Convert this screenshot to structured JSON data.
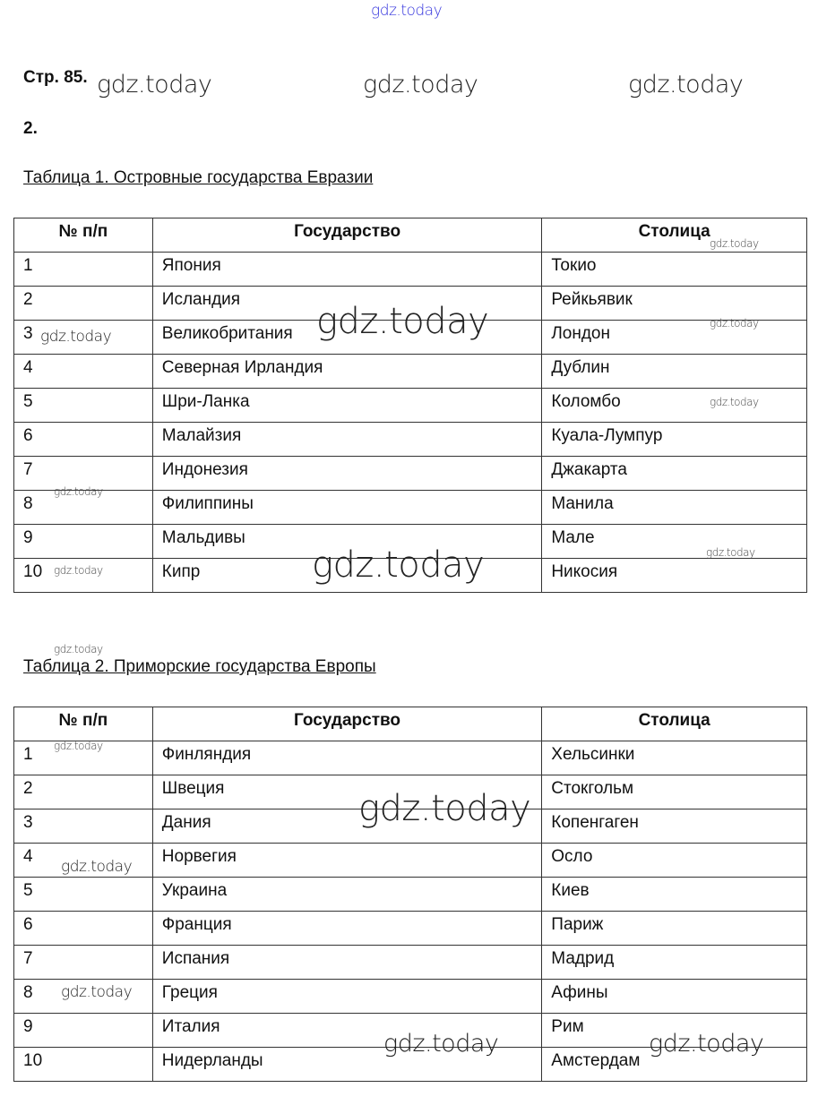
{
  "watermark": "gdz.today",
  "page_label": "Стр. 85.",
  "task_number": "2.",
  "table1": {
    "caption": "Таблица 1. Островные государства Евразии",
    "headers": [
      "№ п/п",
      "Государство",
      "Столица"
    ],
    "rows": [
      [
        "1",
        "Япония",
        "Токио"
      ],
      [
        "2",
        "Исландия",
        "Рейкьявик"
      ],
      [
        "3",
        "Великобритания",
        "Лондон"
      ],
      [
        "4",
        "Северная Ирландия",
        "Дублин"
      ],
      [
        "5",
        "Шри-Ланка",
        "Коломбо"
      ],
      [
        "6",
        "Малайзия",
        "Куала-Лумпур"
      ],
      [
        "7",
        "Индонезия",
        "Джакарта"
      ],
      [
        "8",
        "Филиппины",
        "Манила"
      ],
      [
        "9",
        "Мальдивы",
        "Мале"
      ],
      [
        "10",
        "Кипр",
        "Никосия"
      ]
    ]
  },
  "table2": {
    "caption": "Таблица 2. Приморские государства Европы",
    "headers": [
      "№ п/п",
      "Государство",
      "Столица"
    ],
    "rows": [
      [
        "1",
        "Финляндия",
        "Хельсинки"
      ],
      [
        "2",
        "Швеция",
        "Стокгольм"
      ],
      [
        "3",
        "Дания",
        "Копенгаген"
      ],
      [
        "4",
        "Норвегия",
        "Осло"
      ],
      [
        "5",
        "Украина",
        "Киев"
      ],
      [
        "6",
        "Франция",
        "Париж"
      ],
      [
        "7",
        "Испания",
        "Мадрид"
      ],
      [
        "8",
        "Греция",
        "Афины"
      ],
      [
        "9",
        "Италия",
        "Рим"
      ],
      [
        "10",
        "Нидерланды",
        "Амстердам"
      ]
    ]
  }
}
